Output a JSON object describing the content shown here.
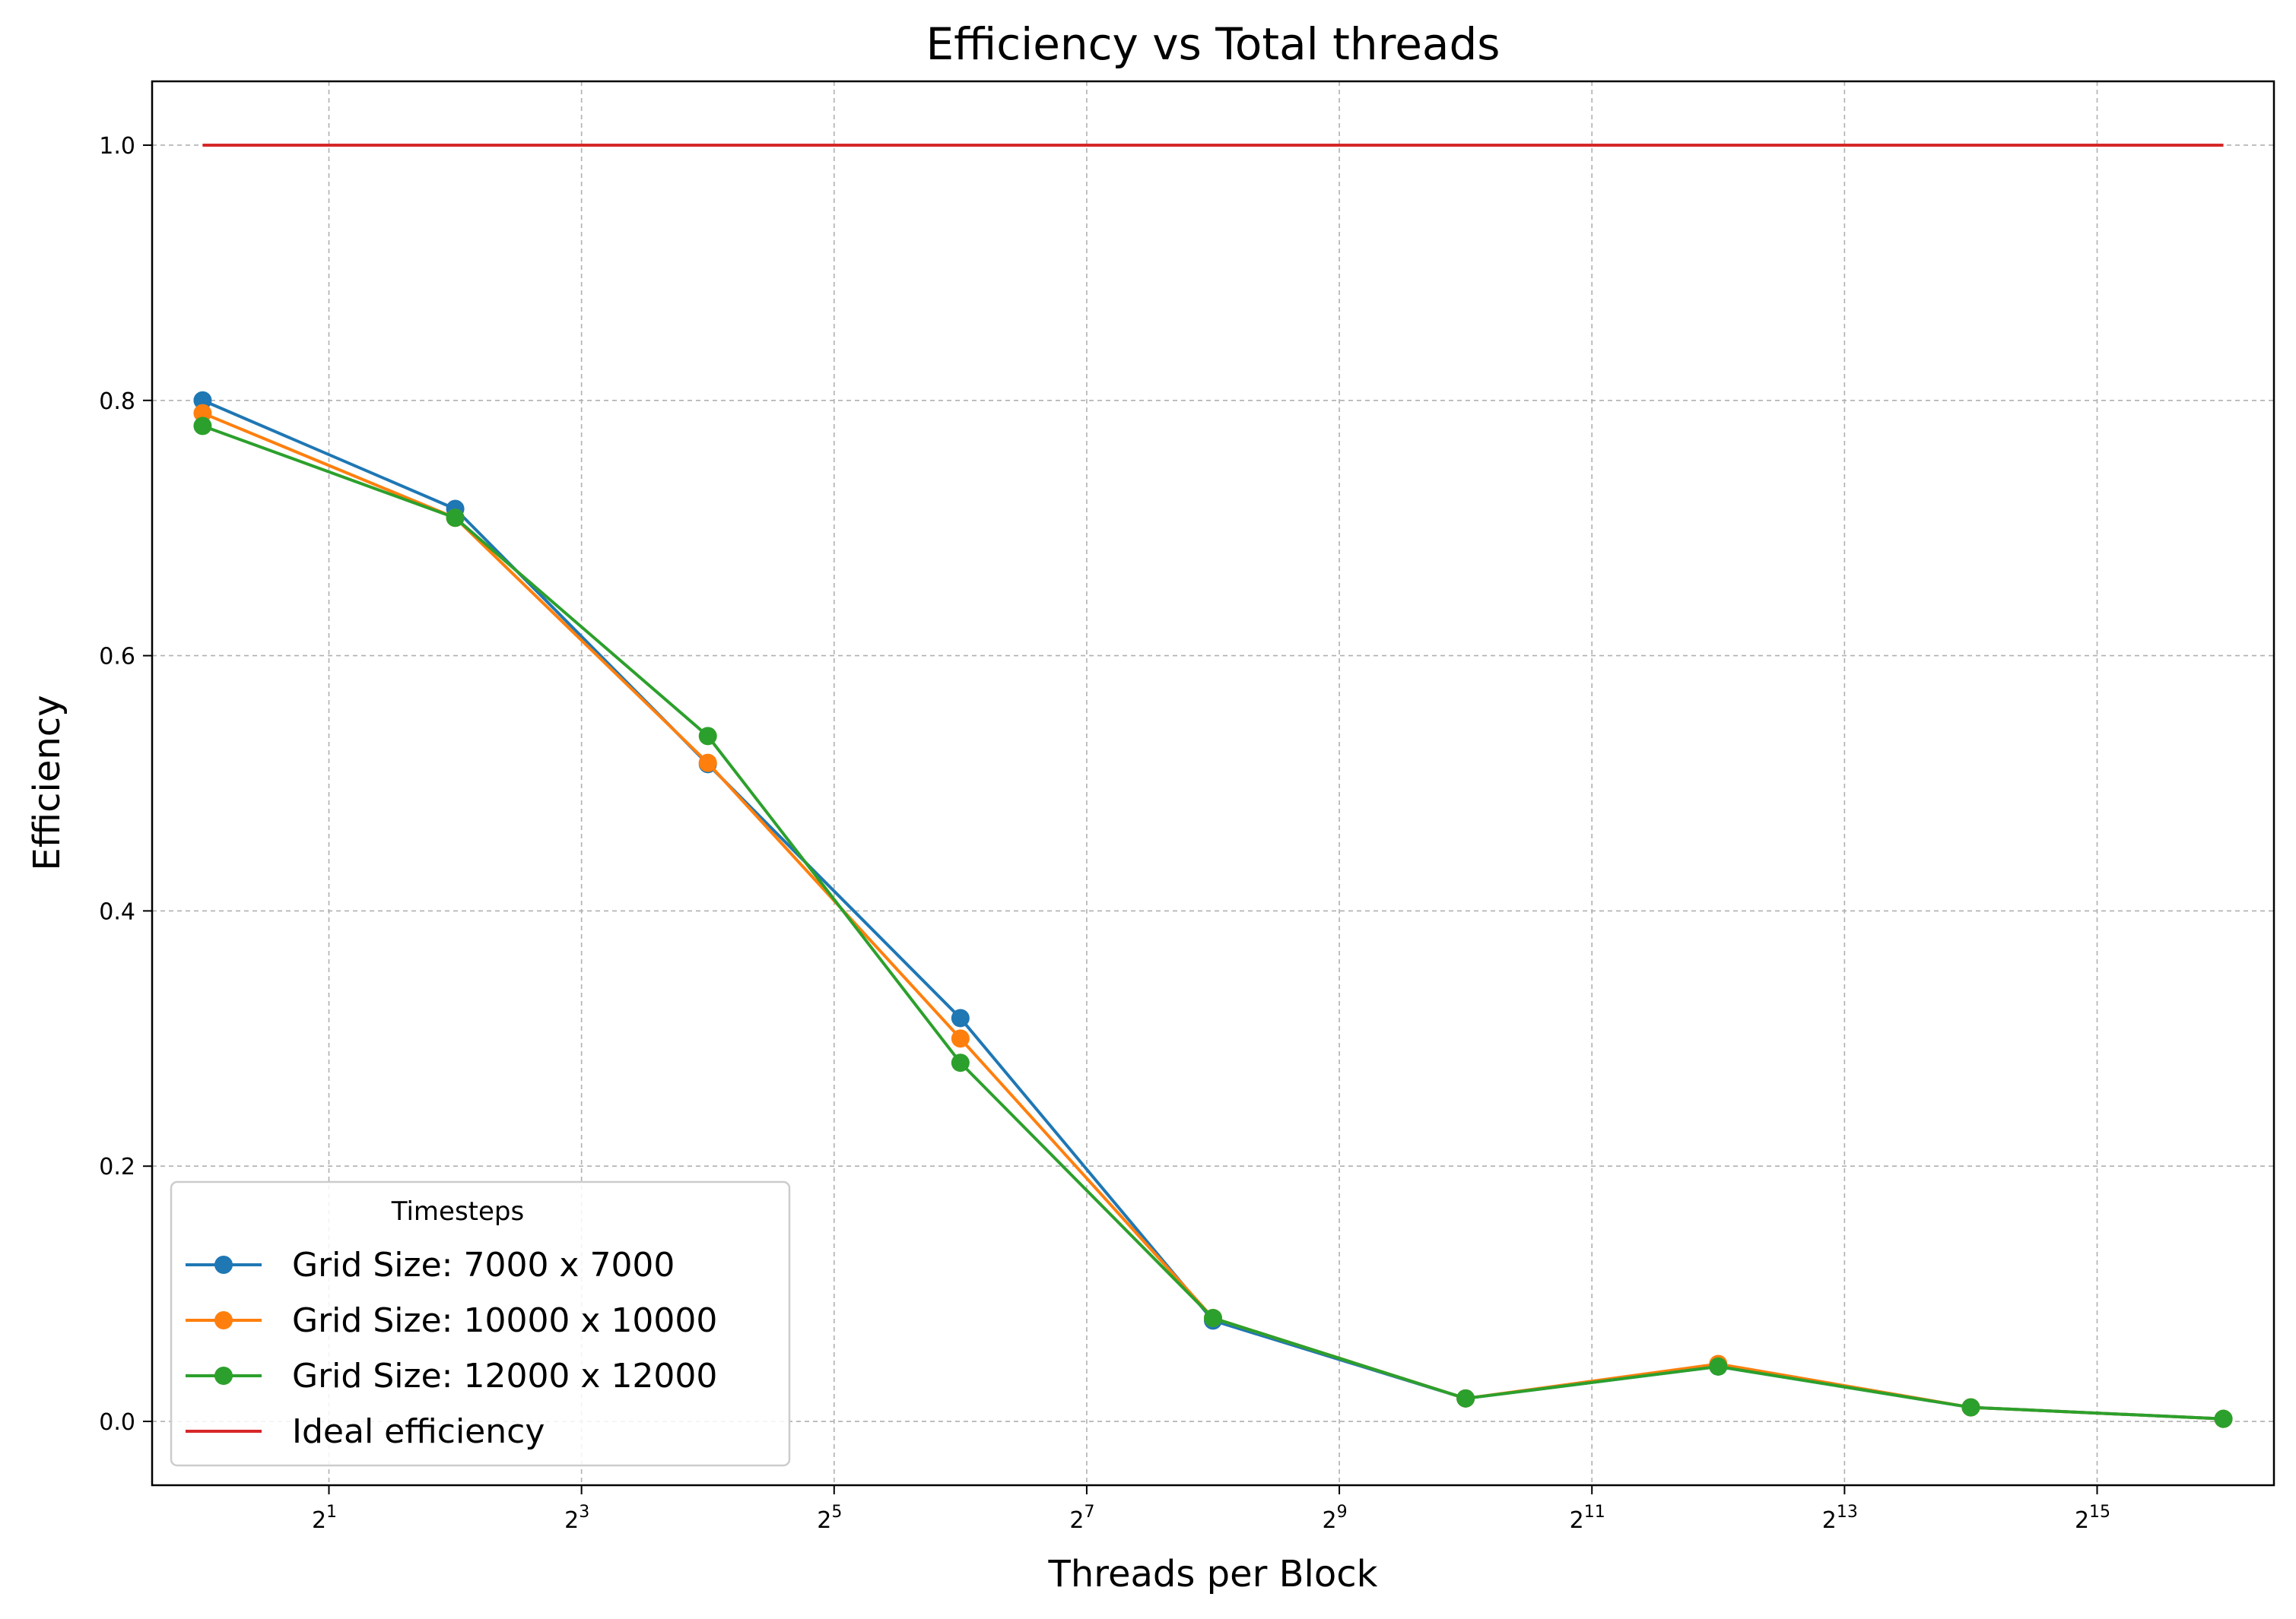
{
  "chart_data": {
    "type": "line",
    "title": "Efficiency vs Total threads",
    "xlabel": "Threads per Block",
    "ylabel": "Efficiency",
    "xscale": "log2",
    "x": [
      1,
      4,
      16,
      64,
      256,
      1024,
      4096,
      16384,
      65536
    ],
    "xticks": [
      {
        "base": "2",
        "exp": "1",
        "value": 2
      },
      {
        "base": "2",
        "exp": "3",
        "value": 8
      },
      {
        "base": "2",
        "exp": "5",
        "value": 32
      },
      {
        "base": "2",
        "exp": "7",
        "value": 128
      },
      {
        "base": "2",
        "exp": "9",
        "value": 512
      },
      {
        "base": "2",
        "exp": "11",
        "value": 2048
      },
      {
        "base": "2",
        "exp": "13",
        "value": 8192
      },
      {
        "base": "2",
        "exp": "15",
        "value": 32768
      }
    ],
    "yticks": [
      "0.0",
      "0.2",
      "0.4",
      "0.6",
      "0.8",
      "1.0"
    ],
    "ylim": [
      -0.05,
      1.05
    ],
    "grid": true,
    "legend_title": "Timesteps",
    "legend_position": "lower-left",
    "series": [
      {
        "name": "Grid Size: 7000 x 7000",
        "color": "#1f77b4",
        "marker": "circle",
        "values": [
          0.8,
          0.715,
          0.515,
          0.316,
          0.079,
          0.018,
          0.043,
          0.011,
          0.002
        ]
      },
      {
        "name": "Grid Size: 10000 x 10000",
        "color": "#ff7f0e",
        "marker": "circle",
        "values": [
          0.79,
          0.708,
          0.516,
          0.3,
          0.081,
          0.018,
          0.045,
          0.011,
          0.002
        ]
      },
      {
        "name": "Grid Size: 12000 x 12000",
        "color": "#2ca02c",
        "marker": "circle",
        "values": [
          0.78,
          0.708,
          0.537,
          0.281,
          0.081,
          0.018,
          0.043,
          0.011,
          0.002
        ]
      },
      {
        "name": "Ideal efficiency",
        "color": "#d62728",
        "marker": "none",
        "values": [
          1,
          1,
          1,
          1,
          1,
          1,
          1,
          1,
          1
        ]
      }
    ]
  }
}
